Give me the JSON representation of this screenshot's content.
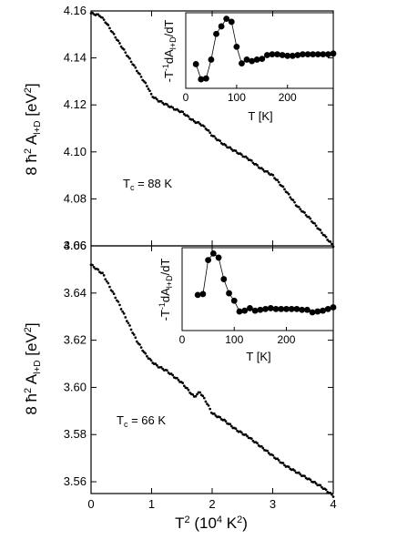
{
  "chart_data": [
    {
      "type": "scatter",
      "xlim": [
        0,
        4
      ],
      "ylim": [
        4.06,
        4.16
      ],
      "xticks": [
        0,
        1,
        2,
        3,
        4
      ],
      "yticks": [
        4.06,
        4.08,
        4.1,
        4.12,
        4.14,
        4.16
      ],
      "ylabel": "8 ħ² A_{l+D} [eV²]",
      "annotation": "T_c = 88 K",
      "grid": false,
      "curve": [
        [
          0.0,
          4.159
        ],
        [
          0.15,
          4.158
        ],
        [
          0.25,
          4.155
        ],
        [
          0.4,
          4.149
        ],
        [
          0.55,
          4.143
        ],
        [
          0.7,
          4.137
        ],
        [
          0.85,
          4.131
        ],
        [
          0.95,
          4.127
        ],
        [
          1.0,
          4.124
        ],
        [
          1.1,
          4.122
        ],
        [
          1.25,
          4.12
        ],
        [
          1.4,
          4.118
        ],
        [
          1.5,
          4.117
        ],
        [
          1.6,
          4.115
        ],
        [
          1.7,
          4.113
        ],
        [
          1.8,
          4.112
        ],
        [
          1.9,
          4.11
        ],
        [
          2.0,
          4.107
        ],
        [
          2.2,
          4.103
        ],
        [
          2.4,
          4.1
        ],
        [
          2.6,
          4.097
        ],
        [
          2.8,
          4.093
        ],
        [
          3.0,
          4.09
        ],
        [
          3.2,
          4.084
        ],
        [
          3.4,
          4.077
        ],
        [
          3.6,
          4.072
        ],
        [
          3.8,
          4.066
        ],
        [
          4.0,
          4.06
        ]
      ],
      "inset": {
        "type": "line",
        "xlabel": "T [K]",
        "ylabel": "-T⁻¹dA_{l+D}/dT",
        "xlim": [
          0,
          290
        ],
        "ylim": [
          0,
          1
        ],
        "xticks": [
          0,
          100,
          200
        ],
        "x": [
          20,
          30,
          40,
          50,
          60,
          70,
          80,
          90,
          100,
          110,
          120,
          130,
          140,
          150,
          160,
          170,
          180,
          190,
          200,
          210,
          220,
          230,
          240,
          250,
          260,
          270,
          280,
          290
        ],
        "y": [
          0.32,
          0.12,
          0.13,
          0.38,
          0.72,
          0.82,
          0.92,
          0.88,
          0.55,
          0.33,
          0.38,
          0.36,
          0.38,
          0.39,
          0.44,
          0.45,
          0.45,
          0.44,
          0.43,
          0.43,
          0.44,
          0.45,
          0.45,
          0.45,
          0.45,
          0.45,
          0.45,
          0.46
        ]
      }
    },
    {
      "type": "scatter",
      "xlim": [
        0,
        4
      ],
      "ylim": [
        3.555,
        3.66
      ],
      "xticks": [
        0,
        1,
        2,
        3,
        4
      ],
      "yticks": [
        3.56,
        3.58,
        3.6,
        3.62,
        3.64,
        3.66
      ],
      "xlabel": "T² (10⁴ K²)",
      "ylabel": "8 ħ² A_{l+D} [eV²]",
      "annotation": "T_c = 66 K",
      "grid": false,
      "curve": [
        [
          0.0,
          3.652
        ],
        [
          0.1,
          3.65
        ],
        [
          0.2,
          3.648
        ],
        [
          0.3,
          3.643
        ],
        [
          0.45,
          3.636
        ],
        [
          0.6,
          3.628
        ],
        [
          0.75,
          3.62
        ],
        [
          0.9,
          3.614
        ],
        [
          1.0,
          3.611
        ],
        [
          1.1,
          3.609
        ],
        [
          1.25,
          3.607
        ],
        [
          1.4,
          3.604
        ],
        [
          1.5,
          3.602
        ],
        [
          1.6,
          3.599
        ],
        [
          1.7,
          3.596
        ],
        [
          1.8,
          3.598
        ],
        [
          1.9,
          3.594
        ],
        [
          2.0,
          3.589
        ],
        [
          2.2,
          3.586
        ],
        [
          2.4,
          3.582
        ],
        [
          2.6,
          3.579
        ],
        [
          2.8,
          3.575
        ],
        [
          3.0,
          3.571
        ],
        [
          3.2,
          3.567
        ],
        [
          3.4,
          3.564
        ],
        [
          3.6,
          3.561
        ],
        [
          3.8,
          3.558
        ],
        [
          4.0,
          3.554
        ]
      ],
      "inset": {
        "type": "line",
        "xlabel": "T [K]",
        "ylabel": "-T⁻¹dA_{l+D}/dT",
        "xlim": [
          0,
          290
        ],
        "ylim": [
          0,
          1
        ],
        "xticks": [
          0,
          100,
          200
        ],
        "x": [
          30,
          40,
          50,
          60,
          70,
          80,
          90,
          100,
          110,
          120,
          130,
          140,
          150,
          160,
          170,
          180,
          190,
          200,
          210,
          220,
          230,
          240,
          250,
          260,
          270,
          280,
          290
        ],
        "y": [
          0.43,
          0.44,
          0.85,
          0.93,
          0.88,
          0.62,
          0.45,
          0.36,
          0.23,
          0.24,
          0.27,
          0.24,
          0.25,
          0.26,
          0.27,
          0.26,
          0.26,
          0.26,
          0.26,
          0.26,
          0.25,
          0.25,
          0.22,
          0.23,
          0.24,
          0.26,
          0.28
        ]
      }
    }
  ],
  "labels": {
    "top_ylabel": "8 ħ² A_{l+D} [eV²]",
    "bottom_ylabel": "8 ħ² A_{l+D} [eV²]",
    "xlabel": "T² (10⁴ K²)",
    "top_annotation": "T_c = 88 K",
    "bottom_annotation": "T_c = 66 K",
    "top_inset_xlabel": "T [K]",
    "top_inset_ylabel": "-T⁻¹dA_{l+D}/dT",
    "bottom_inset_xlabel": "T [K]",
    "bottom_inset_ylabel": "-T⁻¹dA_{l+D}/dT"
  }
}
